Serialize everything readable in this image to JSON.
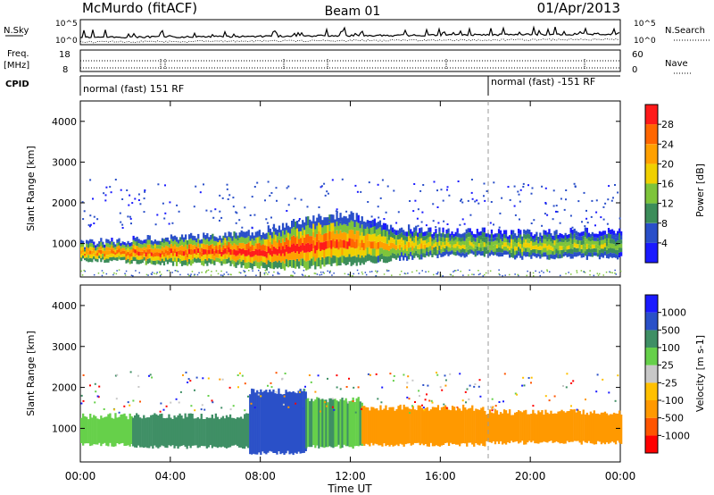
{
  "header": {
    "station": "McMurdo (fitACF)",
    "beam": "Beam 01",
    "date": "01/Apr/2013"
  },
  "panels": {
    "nsky": {
      "label": "N.Sky",
      "ticks": [
        "10^5",
        "10^0"
      ]
    },
    "nsearch": {
      "label": "N.Search",
      "ticks": [
        "10^5",
        "10^0"
      ]
    },
    "freq": {
      "label_line1": "Freq.",
      "label_line2": "[MHz]",
      "ticks": [
        "18",
        "8"
      ]
    },
    "nave": {
      "label": "Nave",
      "ticks": [
        "60",
        "0"
      ]
    },
    "cpid": {
      "label": "CPID",
      "segments": [
        {
          "text": "normal (fast) 151 RF",
          "start_hour": 0
        },
        {
          "text": "normal (fast) -151 RF",
          "start_hour": 18.3
        }
      ]
    }
  },
  "colors": {
    "power": [
      "#1a1aff",
      "#2a4fc9",
      "#3c8d5a",
      "#7ec43a",
      "#f0d000",
      "#ffa000",
      "#ff6600",
      "#ff1a1a"
    ],
    "velocity": [
      "#ff0000",
      "#ff5500",
      "#ff9900",
      "#ffc000",
      "#c8c8c8",
      "#66d04a",
      "#3f8f65",
      "#2a50c8",
      "#1a1aff"
    ]
  },
  "chart_data": [
    {
      "type": "heatmap",
      "name": "power",
      "ylabel": "Slant Range [km]",
      "yticks": [
        1000,
        2000,
        3000,
        4000
      ],
      "ylim": [
        180,
        4500
      ],
      "colorbar": {
        "label": "Power [dB]",
        "ticks": [
          "4",
          "8",
          "12",
          "16",
          "20",
          "24",
          "28"
        ],
        "range": [
          0,
          30
        ]
      },
      "main_band": [
        {
          "hour": 0.0,
          "lower_km": 600,
          "upper_km": 1000,
          "peak_db": 24
        },
        {
          "hour": 2.0,
          "lower_km": 550,
          "upper_km": 1100,
          "peak_db": 26
        },
        {
          "hour": 4.0,
          "lower_km": 500,
          "upper_km": 1150,
          "peak_db": 28
        },
        {
          "hour": 6.0,
          "lower_km": 500,
          "upper_km": 1200,
          "peak_db": 28
        },
        {
          "hour": 8.0,
          "lower_km": 400,
          "upper_km": 1300,
          "peak_db": 30
        },
        {
          "hour": 10.0,
          "lower_km": 400,
          "upper_km": 1600,
          "peak_db": 30
        },
        {
          "hour": 12.0,
          "lower_km": 500,
          "upper_km": 1700,
          "peak_db": 26
        },
        {
          "hour": 14.0,
          "lower_km": 600,
          "upper_km": 1400,
          "peak_db": 20
        },
        {
          "hour": 16.0,
          "lower_km": 700,
          "upper_km": 1300,
          "peak_db": 18
        },
        {
          "hour": 18.0,
          "lower_km": 700,
          "upper_km": 1300,
          "peak_db": 16
        },
        {
          "hour": 20.0,
          "lower_km": 650,
          "upper_km": 1250,
          "peak_db": 18
        },
        {
          "hour": 22.0,
          "lower_km": 650,
          "upper_km": 1300,
          "peak_db": 16
        },
        {
          "hour": 24.0,
          "lower_km": 650,
          "upper_km": 1300,
          "peak_db": 14
        }
      ]
    },
    {
      "type": "heatmap",
      "name": "velocity",
      "xlabel": "Time UT",
      "ylabel": "Slant Range [km]",
      "xticks": [
        "00:00",
        "04:00",
        "08:00",
        "12:00",
        "16:00",
        "20:00",
        "00:00"
      ],
      "xlim": [
        0,
        24
      ],
      "yticks": [
        1000,
        2000,
        3000,
        4000
      ],
      "ylim": [
        180,
        4500
      ],
      "colorbar": {
        "label": "Velocity [m s-1]",
        "ticks": [
          "-1000",
          "-500",
          "-100",
          "-25",
          "25",
          "100",
          "500",
          "1000"
        ]
      },
      "segments": [
        {
          "start_hour": 0.0,
          "end_hour": 2.3,
          "lower_km": 600,
          "upper_km": 1300,
          "velocity": 60
        },
        {
          "start_hour": 2.3,
          "end_hour": 7.5,
          "lower_km": 550,
          "upper_km": 1300,
          "velocity": 200
        },
        {
          "start_hour": 7.5,
          "end_hour": 10.0,
          "lower_km": 400,
          "upper_km": 1900,
          "velocity": 700
        },
        {
          "start_hour": 10.0,
          "end_hour": 12.5,
          "lower_km": 550,
          "upper_km": 1700,
          "velocity": 100
        },
        {
          "start_hour": 12.5,
          "end_hour": 18.0,
          "lower_km": 600,
          "upper_km": 1500,
          "velocity": -150
        },
        {
          "start_hour": 18.0,
          "end_hour": 24.0,
          "lower_km": 650,
          "upper_km": 1400,
          "velocity": -300
        }
      ]
    }
  ]
}
